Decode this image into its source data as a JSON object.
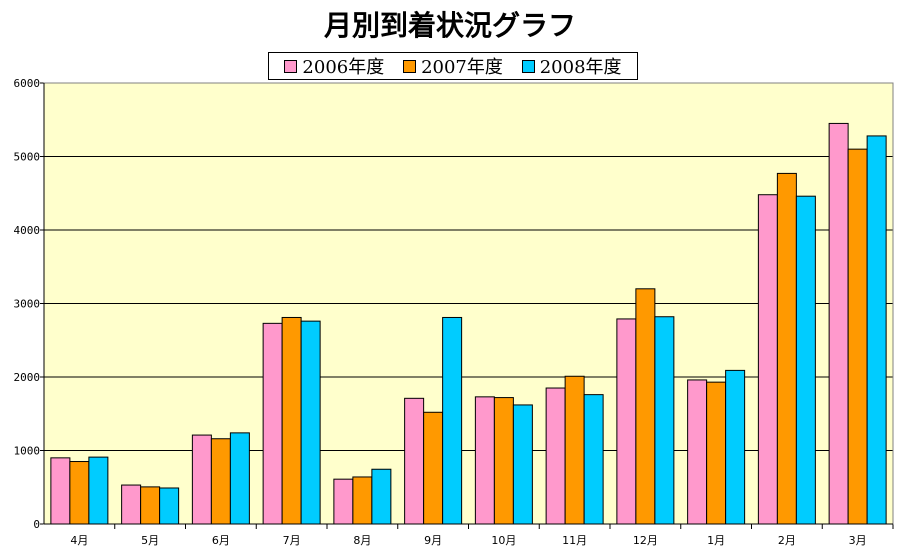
{
  "colors": {
    "series_2006": "#ff99cc",
    "series_2007": "#ff9900",
    "series_2008": "#00ccff",
    "plot_bg": "#ffffcc",
    "axis": "#000000"
  },
  "chart_data": {
    "type": "bar",
    "title": "月別到着状況グラフ",
    "categories": [
      "4月",
      "5月",
      "6月",
      "7月",
      "8月",
      "9月",
      "10月",
      "11月",
      "12月",
      "1月",
      "2月",
      "3月"
    ],
    "series": [
      {
        "name": "2006年度",
        "values": [
          900,
          530,
          1210,
          2730,
          610,
          1710,
          1730,
          1850,
          2790,
          1960,
          4480,
          5450
        ]
      },
      {
        "name": "2007年度",
        "values": [
          850,
          505,
          1160,
          2810,
          640,
          1520,
          1720,
          2010,
          3200,
          1930,
          4770,
          5100
        ]
      },
      {
        "name": "2008年度",
        "values": [
          910,
          490,
          1240,
          2760,
          745,
          2810,
          1620,
          1760,
          2820,
          2090,
          4460,
          5280
        ]
      }
    ],
    "ylim": [
      0,
      6000
    ],
    "yticks": [
      0,
      1000,
      2000,
      3000,
      4000,
      5000,
      6000
    ],
    "grid": true,
    "legend_position": "top"
  }
}
